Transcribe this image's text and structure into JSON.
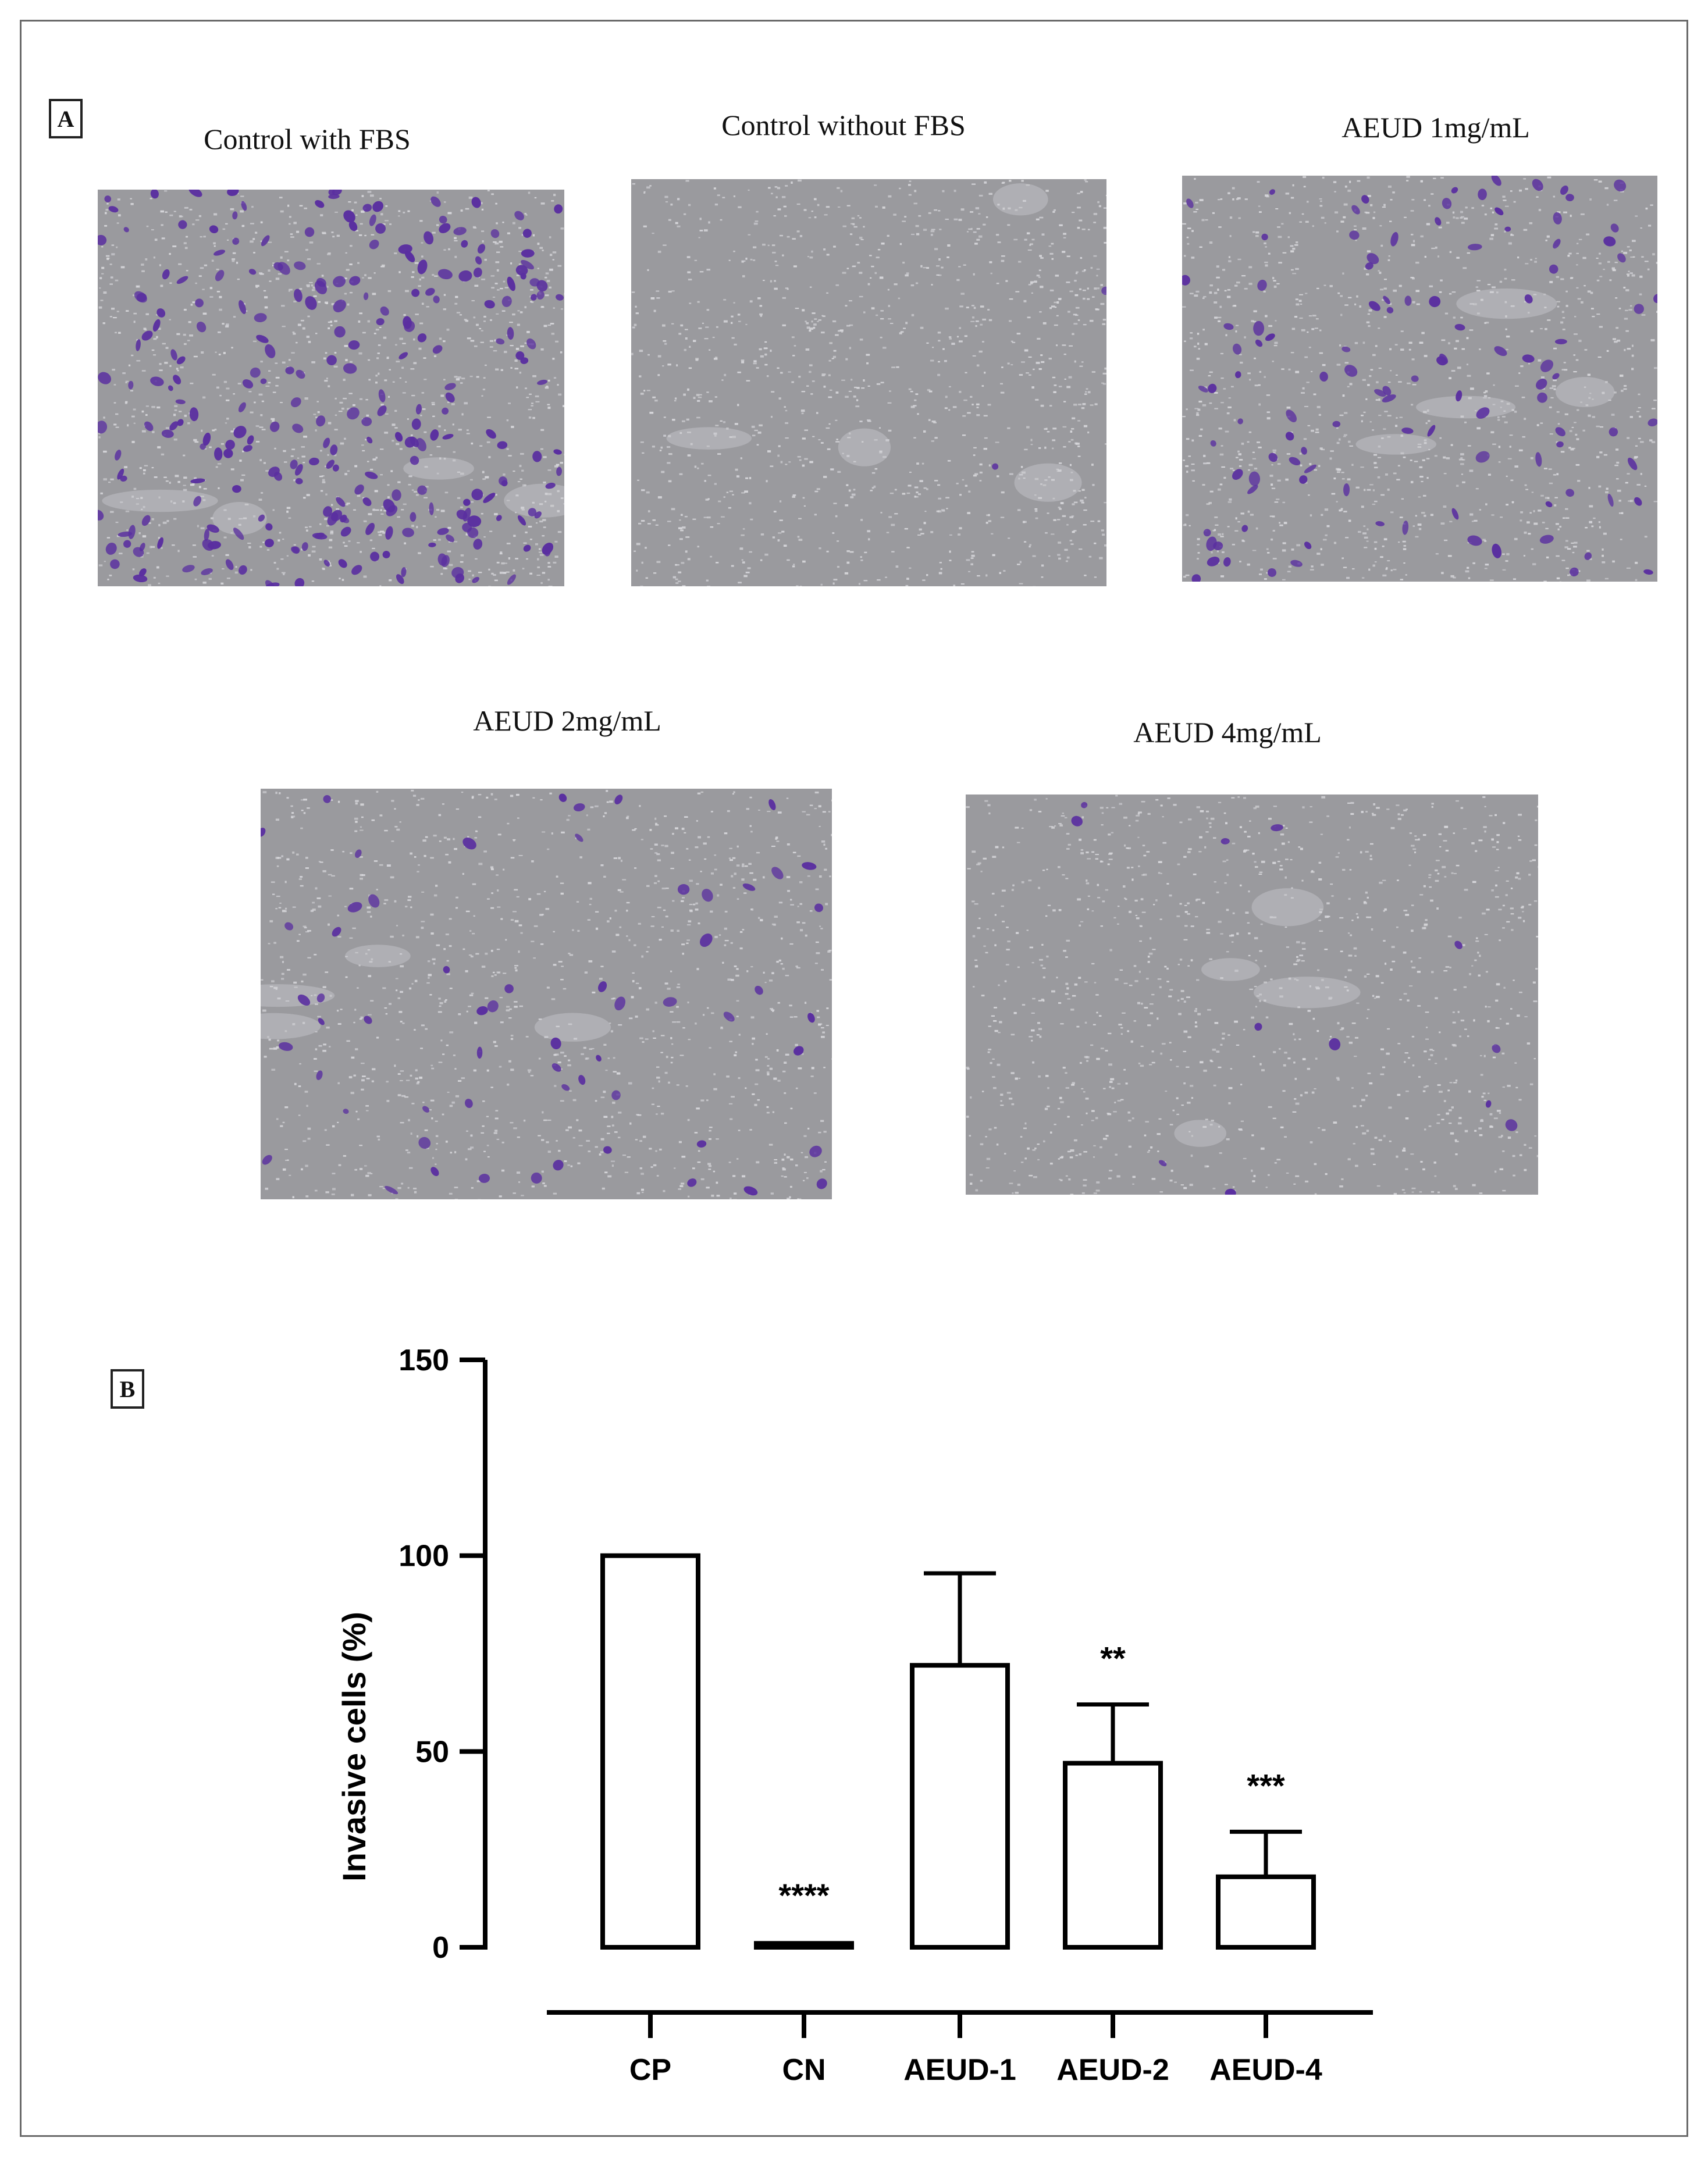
{
  "panel_a": {
    "label": "A",
    "images": [
      {
        "caption": "Control with FBS",
        "cell_count": 260
      },
      {
        "caption": "Control without FBS",
        "cell_count": 2
      },
      {
        "caption": "AEUD 1mg/mL",
        "cell_count": 110
      },
      {
        "caption": "AEUD 2mg/mL",
        "cell_count": 60
      },
      {
        "caption": "AEUD 4mg/mL",
        "cell_count": 12
      }
    ]
  },
  "panel_b": {
    "label": "B"
  },
  "colors": {
    "border": "#6b6b6b",
    "micro_bg": "#9a9a9e",
    "stain": "#5a2fa0",
    "axis": "#000000"
  },
  "chart_data": {
    "type": "bar",
    "title": "",
    "xlabel": "",
    "ylabel": "Invasive cells (%)",
    "ylim": [
      0,
      150
    ],
    "yticks": [
      "0",
      "50",
      "100",
      "150"
    ],
    "categories": [
      "CP",
      "CN",
      "AEUD-1",
      "AEUD-2",
      "AEUD-4"
    ],
    "values": [
      100,
      1,
      72,
      47,
      18
    ],
    "error_upper": [
      100,
      1.5,
      95.5,
      62,
      29.5
    ],
    "annotations": [
      "",
      "****",
      "",
      "**",
      "***"
    ],
    "bar_fill": "#ffffff",
    "grid": false
  }
}
